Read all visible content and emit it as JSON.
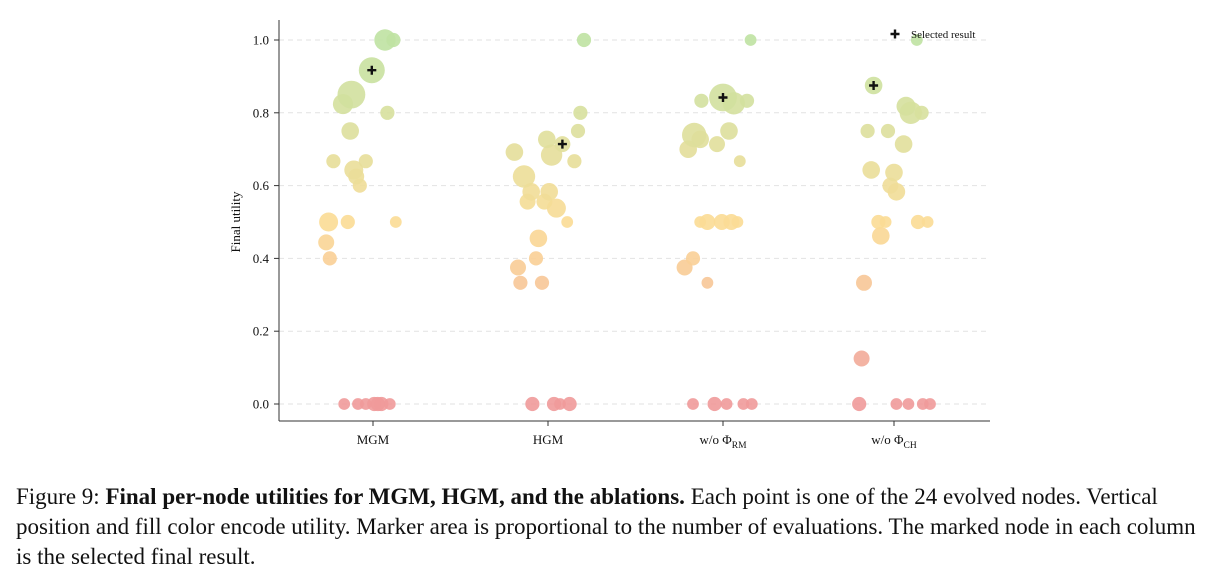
{
  "chart_data": {
    "type": "scatter",
    "title": "",
    "xlabel": "",
    "ylabel": "Final utility",
    "ylim": [
      -0.05,
      1.05
    ],
    "yticks": [
      "0.0",
      "0.2",
      "0.4",
      "0.6",
      "0.8",
      "1.0"
    ],
    "grid": "horizontal dashed",
    "legend": {
      "placement": "top-right",
      "label": "Selected result",
      "marker": "plus"
    },
    "categories": [
      {
        "base": "MGM",
        "sub": ""
      },
      {
        "base": "HGM",
        "sub": ""
      },
      {
        "base": "w/o Φ",
        "sub": "RM"
      },
      {
        "base": "w/o Φ",
        "sub": "CH"
      }
    ],
    "color_scale": {
      "low": "#ef9a9a",
      "mid": "#fbdc95",
      "high": "#bfe2a2"
    },
    "series": [
      {
        "category": "MGM",
        "points": [
          {
            "dx": -0.48,
            "y": 0.0,
            "evals": 1
          },
          {
            "dx": -0.25,
            "y": 0.0,
            "evals": 1
          },
          {
            "dx": -0.12,
            "y": 0.0,
            "evals": 1
          },
          {
            "dx": 0.02,
            "y": 0.0,
            "evals": 2
          },
          {
            "dx": 0.08,
            "y": 0.0,
            "evals": 2
          },
          {
            "dx": 0.14,
            "y": 0.0,
            "evals": 2
          },
          {
            "dx": 0.28,
            "y": 0.0,
            "evals": 1
          },
          {
            "dx": -0.72,
            "y": 0.4,
            "evals": 2
          },
          {
            "dx": -0.78,
            "y": 0.444,
            "evals": 3
          },
          {
            "dx": -0.74,
            "y": 0.5,
            "evals": 5
          },
          {
            "dx": -0.42,
            "y": 0.5,
            "evals": 2
          },
          {
            "dx": 0.38,
            "y": 0.5,
            "evals": 1
          },
          {
            "dx": -0.22,
            "y": 0.6,
            "evals": 2
          },
          {
            "dx": -0.28,
            "y": 0.625,
            "evals": 3
          },
          {
            "dx": -0.32,
            "y": 0.643,
            "evals": 5
          },
          {
            "dx": -0.66,
            "y": 0.667,
            "evals": 2
          },
          {
            "dx": -0.12,
            "y": 0.667,
            "evals": 2
          },
          {
            "dx": -0.38,
            "y": 0.75,
            "evals": 4
          },
          {
            "dx": 0.24,
            "y": 0.8,
            "evals": 2
          },
          {
            "dx": -0.5,
            "y": 0.824,
            "evals": 6
          },
          {
            "dx": -0.36,
            "y": 0.85,
            "evals": 14
          },
          {
            "dx": -0.02,
            "y": 0.917,
            "evals": 12,
            "selected": true
          },
          {
            "dx": 0.2,
            "y": 1.0,
            "evals": 7
          },
          {
            "dx": 0.34,
            "y": 1.0,
            "evals": 2
          }
        ]
      },
      {
        "category": "HGM",
        "points": [
          {
            "dx": -0.26,
            "y": 0.0,
            "evals": 2
          },
          {
            "dx": 0.1,
            "y": 0.0,
            "evals": 2
          },
          {
            "dx": 0.2,
            "y": 0.0,
            "evals": 1
          },
          {
            "dx": 0.36,
            "y": 0.0,
            "evals": 2
          },
          {
            "dx": -0.46,
            "y": 0.333,
            "evals": 2
          },
          {
            "dx": -0.1,
            "y": 0.333,
            "evals": 2
          },
          {
            "dx": -0.5,
            "y": 0.375,
            "evals": 3
          },
          {
            "dx": -0.2,
            "y": 0.4,
            "evals": 2
          },
          {
            "dx": -0.16,
            "y": 0.455,
            "evals": 4
          },
          {
            "dx": 0.32,
            "y": 0.5,
            "evals": 1
          },
          {
            "dx": 0.14,
            "y": 0.538,
            "evals": 5
          },
          {
            "dx": -0.34,
            "y": 0.556,
            "evals": 3
          },
          {
            "dx": -0.06,
            "y": 0.556,
            "evals": 3
          },
          {
            "dx": -0.28,
            "y": 0.583,
            "evals": 4
          },
          {
            "dx": 0.02,
            "y": 0.583,
            "evals": 4
          },
          {
            "dx": -0.4,
            "y": 0.625,
            "evals": 8
          },
          {
            "dx": 0.44,
            "y": 0.667,
            "evals": 2
          },
          {
            "dx": 0.06,
            "y": 0.684,
            "evals": 7
          },
          {
            "dx": -0.56,
            "y": 0.692,
            "evals": 4
          },
          {
            "dx": 0.24,
            "y": 0.714,
            "evals": 3,
            "selected": true
          },
          {
            "dx": -0.02,
            "y": 0.727,
            "evals": 4
          },
          {
            "dx": 0.5,
            "y": 0.75,
            "evals": 2
          },
          {
            "dx": 0.54,
            "y": 0.8,
            "evals": 2
          },
          {
            "dx": 0.6,
            "y": 1.0,
            "evals": 2
          }
        ]
      },
      {
        "category": "w/o Φ RM",
        "points": [
          {
            "dx": -0.5,
            "y": 0.0,
            "evals": 1
          },
          {
            "dx": -0.14,
            "y": 0.0,
            "evals": 2
          },
          {
            "dx": 0.06,
            "y": 0.0,
            "evals": 1
          },
          {
            "dx": 0.34,
            "y": 0.0,
            "evals": 1
          },
          {
            "dx": 0.48,
            "y": 0.0,
            "evals": 1
          },
          {
            "dx": -0.26,
            "y": 0.333,
            "evals": 1
          },
          {
            "dx": -0.64,
            "y": 0.375,
            "evals": 3
          },
          {
            "dx": -0.5,
            "y": 0.4,
            "evals": 2
          },
          {
            "dx": -0.38,
            "y": 0.5,
            "evals": 1
          },
          {
            "dx": -0.26,
            "y": 0.5,
            "evals": 3
          },
          {
            "dx": -0.02,
            "y": 0.5,
            "evals": 3
          },
          {
            "dx": 0.14,
            "y": 0.5,
            "evals": 3
          },
          {
            "dx": 0.24,
            "y": 0.5,
            "evals": 1
          },
          {
            "dx": 0.28,
            "y": 0.667,
            "evals": 1
          },
          {
            "dx": -0.58,
            "y": 0.7,
            "evals": 4
          },
          {
            "dx": -0.1,
            "y": 0.714,
            "evals": 3
          },
          {
            "dx": -0.38,
            "y": 0.727,
            "evals": 4
          },
          {
            "dx": -0.48,
            "y": 0.739,
            "evals": 10
          },
          {
            "dx": 0.1,
            "y": 0.75,
            "evals": 4
          },
          {
            "dx": -0.36,
            "y": 0.833,
            "evals": 2
          },
          {
            "dx": 0.18,
            "y": 0.826,
            "evals": 8
          },
          {
            "dx": 0.4,
            "y": 0.833,
            "evals": 2
          },
          {
            "dx": 0.0,
            "y": 0.842,
            "evals": 14,
            "selected": true
          },
          {
            "dx": 0.46,
            "y": 1.0,
            "evals": 1
          }
        ]
      },
      {
        "category": "w/o Φ CH",
        "points": [
          {
            "dx": -0.58,
            "y": 0.0,
            "evals": 2
          },
          {
            "dx": 0.04,
            "y": 0.0,
            "evals": 1
          },
          {
            "dx": 0.24,
            "y": 0.0,
            "evals": 1
          },
          {
            "dx": 0.48,
            "y": 0.0,
            "evals": 1
          },
          {
            "dx": 0.6,
            "y": 0.0,
            "evals": 1
          },
          {
            "dx": -0.54,
            "y": 0.125,
            "evals": 3
          },
          {
            "dx": -0.5,
            "y": 0.333,
            "evals": 3
          },
          {
            "dx": -0.22,
            "y": 0.462,
            "evals": 4
          },
          {
            "dx": -0.26,
            "y": 0.5,
            "evals": 2
          },
          {
            "dx": -0.14,
            "y": 0.5,
            "evals": 1
          },
          {
            "dx": 0.4,
            "y": 0.5,
            "evals": 2
          },
          {
            "dx": 0.56,
            "y": 0.5,
            "evals": 1
          },
          {
            "dx": 0.04,
            "y": 0.583,
            "evals": 4
          },
          {
            "dx": -0.06,
            "y": 0.6,
            "evals": 3
          },
          {
            "dx": 0.0,
            "y": 0.636,
            "evals": 4
          },
          {
            "dx": -0.38,
            "y": 0.643,
            "evals": 4
          },
          {
            "dx": 0.16,
            "y": 0.714,
            "evals": 4
          },
          {
            "dx": -0.44,
            "y": 0.75,
            "evals": 2
          },
          {
            "dx": -0.1,
            "y": 0.75,
            "evals": 2
          },
          {
            "dx": 0.28,
            "y": 0.8,
            "evals": 8
          },
          {
            "dx": 0.46,
            "y": 0.8,
            "evals": 2
          },
          {
            "dx": 0.2,
            "y": 0.818,
            "evals": 5
          },
          {
            "dx": -0.34,
            "y": 0.875,
            "evals": 4,
            "selected": true
          },
          {
            "dx": 0.38,
            "y": 1.0,
            "evals": 1
          }
        ]
      }
    ]
  },
  "caption": {
    "prefix": "Figure 9: ",
    "bold": "Final per-node utilities for MGM, HGM, and the ablations.",
    "rest": " Each point is one of the 24 evolved nodes. Vertical position and fill color encode utility. Marker area is proportional to the number of evaluations. The marked node in each column is the selected final result."
  }
}
